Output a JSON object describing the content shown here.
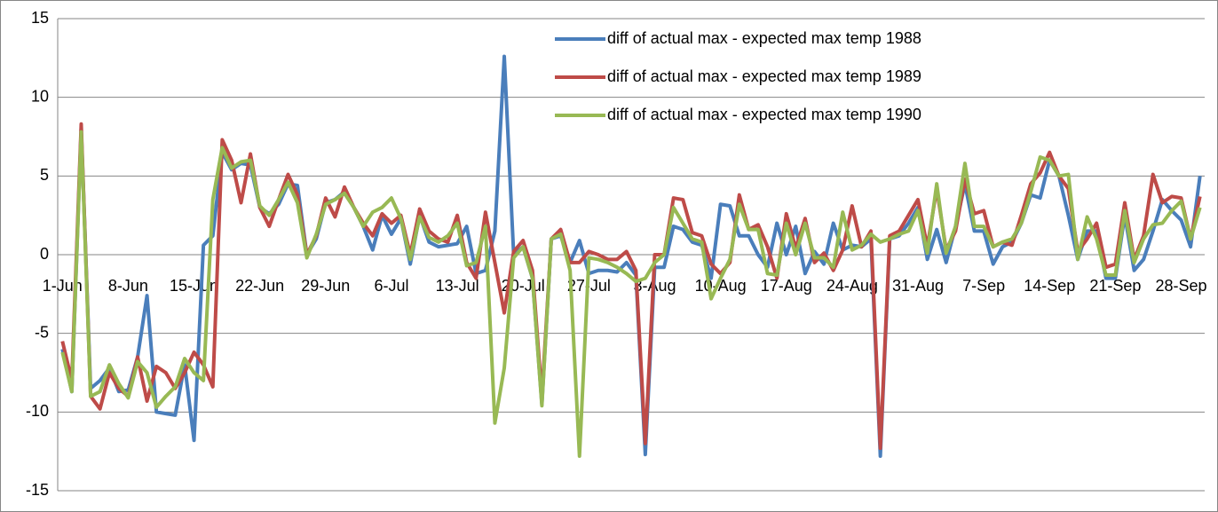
{
  "chart_data": {
    "type": "line",
    "categories": [
      "1-Jun",
      null,
      null,
      null,
      null,
      null,
      null,
      "8-Jun",
      null,
      null,
      null,
      null,
      null,
      null,
      "15-Jun",
      null,
      null,
      null,
      null,
      null,
      null,
      "22-Jun",
      null,
      null,
      null,
      null,
      null,
      null,
      "29-Jun",
      null,
      null,
      null,
      null,
      null,
      null,
      "6-Jul",
      null,
      null,
      null,
      null,
      null,
      null,
      "13-Jul",
      null,
      null,
      null,
      null,
      null,
      null,
      "20-Jul",
      null,
      null,
      null,
      null,
      null,
      null,
      "27-Jul",
      null,
      null,
      null,
      null,
      null,
      null,
      "3-Aug",
      null,
      null,
      null,
      null,
      null,
      null,
      "10-Aug",
      null,
      null,
      null,
      null,
      null,
      null,
      "17-Aug",
      null,
      null,
      null,
      null,
      null,
      null,
      "24-Aug",
      null,
      null,
      null,
      null,
      null,
      null,
      "31-Aug",
      null,
      null,
      null,
      null,
      null,
      null,
      "7-Sep",
      null,
      null,
      null,
      null,
      null,
      null,
      "14-Sep",
      null,
      null,
      null,
      null,
      null,
      null,
      "21-Sep",
      null,
      null,
      null,
      null,
      null,
      null,
      "28-Sep",
      null,
      null
    ],
    "series": [
      {
        "name": "diff of actual max - expected max temp 1988",
        "color": "#4a7ebb",
        "values": [
          -6,
          -8.7,
          8,
          -8.5,
          -8,
          -7.2,
          -8.7,
          -8.6,
          -6.5,
          -2.6,
          -10,
          -10.1,
          -10.2,
          -7,
          -11.8,
          0.6,
          1.2,
          6.5,
          5.4,
          5.8,
          5.7,
          3,
          2.6,
          3.2,
          4.5,
          4.4,
          0,
          1,
          3.3,
          3.5,
          4,
          3,
          1.8,
          0.3,
          2.5,
          1.3,
          2.3,
          -0.6,
          2.5,
          0.8,
          0.5,
          0.6,
          0.7,
          1.8,
          -1.2,
          -1,
          1.5,
          12.6,
          0,
          0.5,
          -1.5,
          -9.5,
          1,
          1.2,
          -0.5,
          0.9,
          -1.2,
          -1,
          -1,
          -1.1,
          -0.5,
          -1.3,
          -12.7,
          -0.8,
          -0.8,
          1.8,
          1.6,
          0.8,
          0.6,
          -1.5,
          3.2,
          3.1,
          1.2,
          1.2,
          0,
          -0.8,
          2,
          0,
          1.8,
          -1.2,
          0.2,
          -0.6,
          2,
          0.3,
          0.6,
          0.5,
          1,
          -12.8,
          1,
          1.2,
          2,
          3,
          -0.3,
          1.6,
          -0.5,
          1.8,
          4.5,
          1.5,
          1.5,
          -0.6,
          0.5,
          0.8,
          2,
          3.8,
          3.6,
          6,
          5,
          2.5,
          -0.3,
          1.5,
          1.5,
          -1.5,
          -1.5,
          2.5,
          -1,
          -0.3,
          1.5,
          3.5,
          2.8,
          2.2,
          0.5,
          5
        ]
      },
      {
        "name": "diff of actual max - expected max temp 1989",
        "color": "#be4b48",
        "values": [
          -5.5,
          -8,
          8.3,
          -9,
          -9.8,
          -7.5,
          -8.5,
          -9,
          -6.5,
          -9.3,
          -7.1,
          -7.5,
          -8.5,
          -7.5,
          -6.2,
          -7,
          -8.4,
          7.3,
          6,
          3.3,
          6.4,
          3,
          1.8,
          3.5,
          5.1,
          3.8,
          0,
          1.2,
          3.6,
          2.4,
          4.3,
          3,
          2,
          1.2,
          2.6,
          2,
          2.5,
          0,
          2.9,
          1.5,
          1,
          0.8,
          2.5,
          -0.5,
          -1.5,
          2.7,
          -0.5,
          -3.7,
          0.2,
          0.9,
          -1,
          -9,
          1,
          1.6,
          -0.5,
          -0.5,
          0.2,
          0,
          -0.3,
          -0.3,
          0.2,
          -1,
          -12,
          0,
          0,
          3.6,
          3.5,
          1.4,
          1.2,
          -0.6,
          -1.2,
          -0.5,
          3.8,
          1.6,
          1.9,
          0.5,
          -1.5,
          2.6,
          0.4,
          2.3,
          -0.5,
          0.1,
          -1,
          0.3,
          3.1,
          0.5,
          1.5,
          -12.3,
          1.2,
          1.5,
          2.5,
          3.5,
          0.5,
          4.2,
          0.3,
          1.5,
          4.8,
          2.6,
          2.8,
          0.5,
          0.8,
          0.6,
          2.5,
          4.5,
          5.2,
          6.5,
          5,
          4.2,
          0.2,
          1,
          2,
          -0.8,
          -0.6,
          3.3,
          -0.3,
          1.2,
          5.1,
          3.3,
          3.7,
          3.6,
          1,
          3.7
        ]
      },
      {
        "name": "diff of actual max - expected max temp 1990",
        "color": "#98b954",
        "values": [
          -6.2,
          -8.7,
          7.8,
          -9,
          -8.7,
          -7,
          -8.2,
          -9.1,
          -6.8,
          -7.5,
          -9.7,
          -9,
          -8.4,
          -6.6,
          -7.5,
          -8,
          3.5,
          6.8,
          5.5,
          5.9,
          6,
          3.1,
          2.5,
          3.5,
          4.6,
          3.3,
          -0.2,
          1.3,
          3.2,
          3.5,
          3.9,
          3,
          1.8,
          2.7,
          3,
          3.6,
          2.3,
          -0.3,
          2.4,
          1.1,
          0.8,
          1.2,
          2,
          -0.7,
          -0.5,
          1.8,
          -10.7,
          -7.2,
          -0.2,
          0.5,
          -1.5,
          -9.6,
          1,
          1.3,
          -1,
          -12.8,
          -0.2,
          -0.3,
          -0.5,
          -0.8,
          -1.2,
          -1.7,
          -1.5,
          -0.5,
          0,
          3,
          2,
          1,
          0.8,
          -2.8,
          -1.5,
          -0.3,
          3.2,
          1.6,
          1.6,
          -1.2,
          -1.3,
          2,
          0,
          2,
          -0.2,
          -0.2,
          -0.8,
          2.7,
          0.3,
          0.6,
          1.3,
          0.8,
          1,
          1.3,
          1.5,
          2.8,
          0.1,
          4.5,
          0.1,
          1.8,
          5.8,
          1.8,
          1.8,
          0.5,
          0.8,
          1,
          2,
          4,
          6.2,
          6,
          5,
          5.1,
          -0.3,
          2.4,
          1,
          -1.3,
          -1.3,
          2.8,
          -0.5,
          1,
          1.9,
          2,
          2.8,
          3.4,
          1,
          3
        ]
      }
    ],
    "ylim": [
      -15,
      15
    ],
    "yticks": [
      -15,
      -10,
      -5,
      0,
      5,
      10,
      15
    ],
    "grid": true,
    "legend": "top-right"
  }
}
